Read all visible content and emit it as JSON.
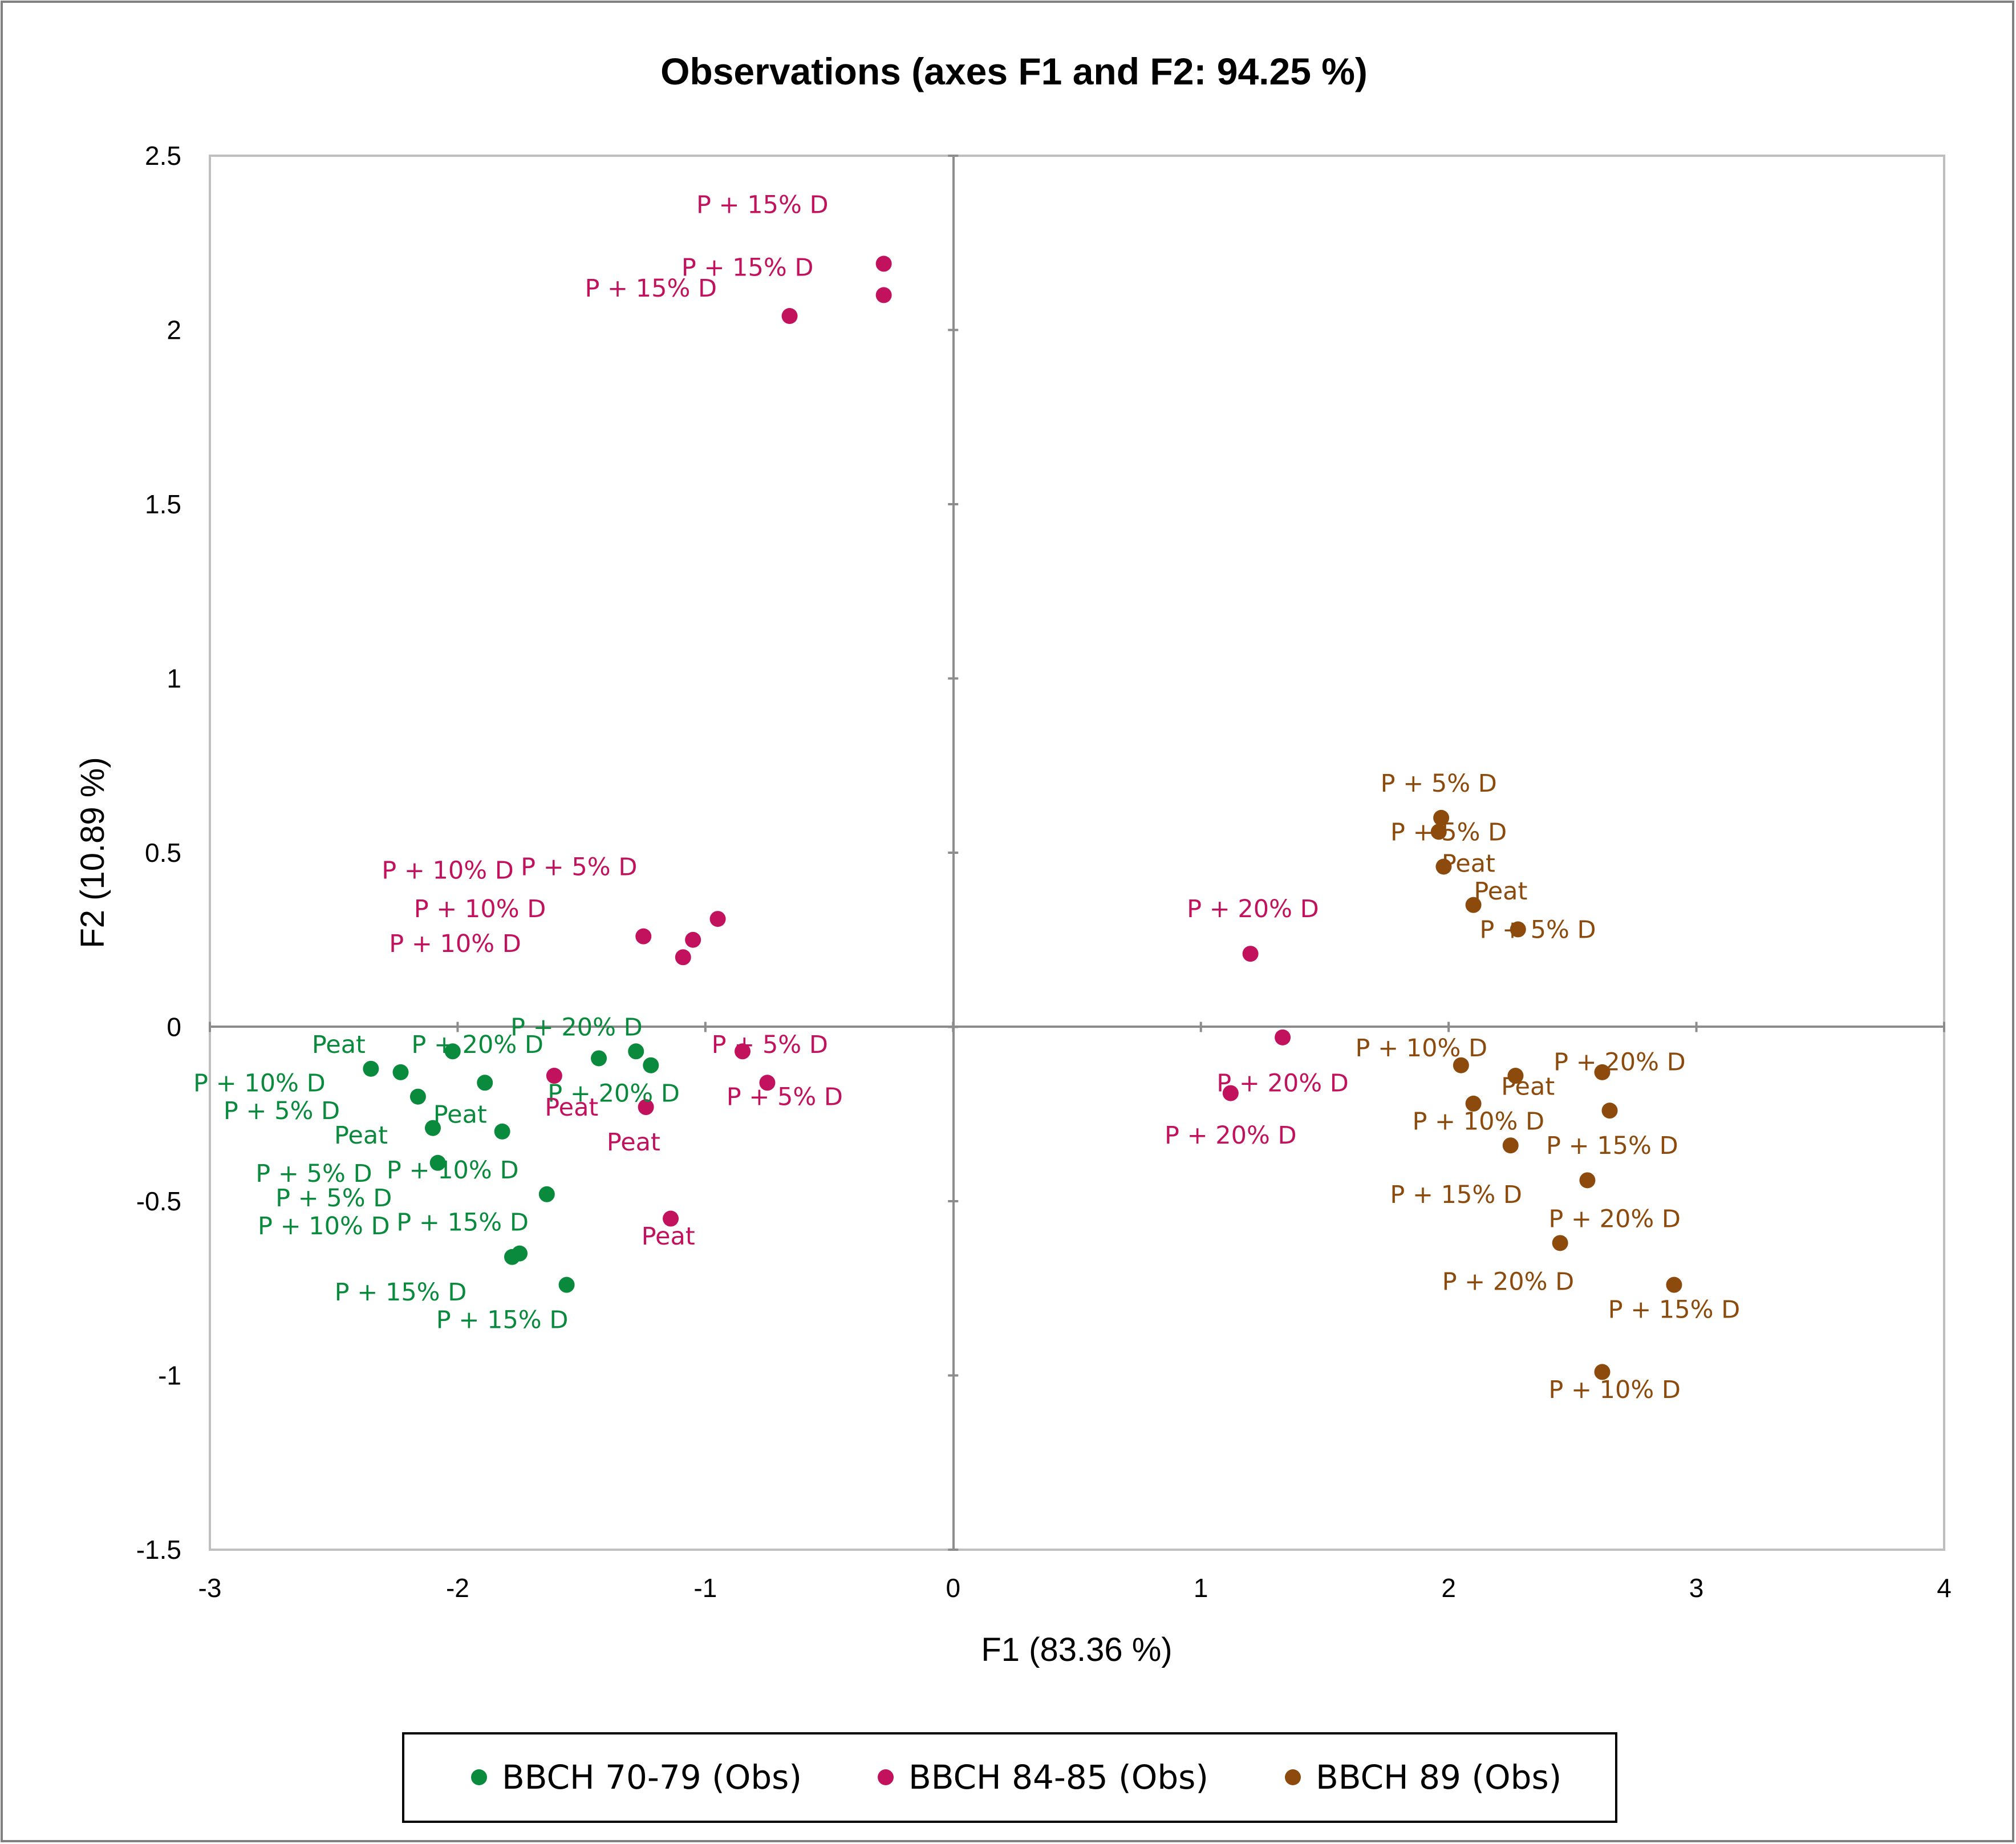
{
  "chart_data": {
    "type": "scatter",
    "title": "Observations (axes F1 and F2: 94.25 %)",
    "xlabel": "F1 (83.36 %)",
    "ylabel": "F2 (10.89 %)",
    "xlim": [
      -3,
      4
    ],
    "ylim": [
      -1.5,
      2.5
    ],
    "xticks": [
      -3,
      -2,
      -1,
      0,
      1,
      2,
      3,
      4
    ],
    "yticks": [
      -1.5,
      -1,
      -0.5,
      0,
      0.5,
      1,
      1.5,
      2,
      2.5
    ],
    "xtick_labels": [
      "-3",
      "-2",
      "-1",
      "0",
      "1",
      "2",
      "3",
      "4"
    ],
    "ytick_labels": [
      "-1.5",
      "-1",
      "-0.5",
      "0",
      "0.5",
      "1",
      "1.5",
      "2",
      "2.5"
    ],
    "grid": false,
    "legend_position": "bottom",
    "series": [
      {
        "name": "BBCH 70-79 (Obs)",
        "color": "#0a8a3c",
        "points": [
          {
            "x": -2.35,
            "y": -0.12
          },
          {
            "x": -2.23,
            "y": -0.13
          },
          {
            "x": -2.16,
            "y": -0.2
          },
          {
            "x": -2.1,
            "y": -0.29
          },
          {
            "x": -2.08,
            "y": -0.39
          },
          {
            "x": -2.02,
            "y": -0.07
          },
          {
            "x": -1.89,
            "y": -0.16
          },
          {
            "x": -1.82,
            "y": -0.3
          },
          {
            "x": -1.64,
            "y": -0.48
          },
          {
            "x": -1.78,
            "y": -0.66
          },
          {
            "x": -1.75,
            "y": -0.65
          },
          {
            "x": -1.56,
            "y": -0.74
          },
          {
            "x": -1.43,
            "y": -0.09
          },
          {
            "x": -1.28,
            "y": -0.07
          },
          {
            "x": -1.22,
            "y": -0.11
          }
        ],
        "labels": [
          {
            "text": "Peat",
            "x": -2.48,
            "y": -0.05
          },
          {
            "text": "P + 10% D",
            "x": -2.8,
            "y": -0.16
          },
          {
            "text": "P + 5% D",
            "x": -2.71,
            "y": -0.24
          },
          {
            "text": "Peat",
            "x": -2.39,
            "y": -0.31
          },
          {
            "text": "Peat",
            "x": -1.99,
            "y": -0.25
          },
          {
            "text": "P + 5% D",
            "x": -2.58,
            "y": -0.42
          },
          {
            "text": "P + 10% D",
            "x": -2.02,
            "y": -0.41
          },
          {
            "text": "P + 5% D",
            "x": -2.5,
            "y": -0.49
          },
          {
            "text": "P + 10% D",
            "x": -2.54,
            "y": -0.57
          },
          {
            "text": "P + 15% D",
            "x": -1.98,
            "y": -0.56
          },
          {
            "text": "P + 15% D",
            "x": -2.23,
            "y": -0.76
          },
          {
            "text": "P + 15% D",
            "x": -1.82,
            "y": -0.84
          },
          {
            "text": "P + 20% D",
            "x": -1.92,
            "y": -0.05
          },
          {
            "text": "P + 20% D",
            "x": -1.52,
            "y": 0.0
          },
          {
            "text": "P + 20% D",
            "x": -1.37,
            "y": -0.19
          }
        ]
      },
      {
        "name": "BBCH 84-85 (Obs)",
        "color": "#c2125e",
        "points": [
          {
            "x": -0.28,
            "y": 2.19
          },
          {
            "x": -0.28,
            "y": 2.1
          },
          {
            "x": -0.66,
            "y": 2.04
          },
          {
            "x": -1.25,
            "y": 0.26
          },
          {
            "x": -1.05,
            "y": 0.25
          },
          {
            "x": -1.09,
            "y": 0.2
          },
          {
            "x": -0.95,
            "y": 0.31
          },
          {
            "x": -1.61,
            "y": -0.14
          },
          {
            "x": -1.24,
            "y": -0.23
          },
          {
            "x": -0.85,
            "y": -0.07
          },
          {
            "x": -0.75,
            "y": -0.16
          },
          {
            "x": -1.14,
            "y": -0.55
          },
          {
            "x": 1.2,
            "y": 0.21
          },
          {
            "x": 1.33,
            "y": -0.03
          },
          {
            "x": 1.12,
            "y": -0.19
          }
        ],
        "labels": [
          {
            "text": "P + 15% D",
            "x": -0.77,
            "y": 2.36
          },
          {
            "text": "P + 15% D",
            "x": -0.83,
            "y": 2.18
          },
          {
            "text": "P + 15% D",
            "x": -1.22,
            "y": 2.12
          },
          {
            "text": "P + 10% D",
            "x": -2.04,
            "y": 0.45
          },
          {
            "text": "P + 5% D",
            "x": -1.51,
            "y": 0.46
          },
          {
            "text": "P + 10% D",
            "x": -1.91,
            "y": 0.34
          },
          {
            "text": "P + 10% D",
            "x": -2.01,
            "y": 0.24
          },
          {
            "text": "P + 5% D",
            "x": -0.74,
            "y": -0.05
          },
          {
            "text": "Peat",
            "x": -1.54,
            "y": -0.23
          },
          {
            "text": "P + 5% D",
            "x": -0.68,
            "y": -0.2
          },
          {
            "text": "Peat",
            "x": -1.29,
            "y": -0.33
          },
          {
            "text": "Peat",
            "x": -1.15,
            "y": -0.6
          },
          {
            "text": "P + 20% D",
            "x": 1.21,
            "y": 0.34
          },
          {
            "text": "P + 20% D",
            "x": 1.33,
            "y": -0.16
          },
          {
            "text": "P + 20% D",
            "x": 1.12,
            "y": -0.31
          }
        ]
      },
      {
        "name": "BBCH 89 (Obs)",
        "color": "#8c4a0c",
        "points": [
          {
            "x": 1.97,
            "y": 0.6
          },
          {
            "x": 1.96,
            "y": 0.56
          },
          {
            "x": 1.98,
            "y": 0.46
          },
          {
            "x": 2.1,
            "y": 0.35
          },
          {
            "x": 2.28,
            "y": 0.28
          },
          {
            "x": 2.05,
            "y": -0.11
          },
          {
            "x": 2.27,
            "y": -0.14
          },
          {
            "x": 2.1,
            "y": -0.22
          },
          {
            "x": 2.62,
            "y": -0.13
          },
          {
            "x": 2.65,
            "y": -0.24
          },
          {
            "x": 2.25,
            "y": -0.34
          },
          {
            "x": 2.56,
            "y": -0.44
          },
          {
            "x": 2.45,
            "y": -0.62
          },
          {
            "x": 2.91,
            "y": -0.74
          },
          {
            "x": 2.62,
            "y": -0.99
          }
        ],
        "labels": [
          {
            "text": "P + 5% D",
            "x": 1.96,
            "y": 0.7
          },
          {
            "text": "P + 5% D",
            "x": 2.0,
            "y": 0.56
          },
          {
            "text": "Peat",
            "x": 2.08,
            "y": 0.47
          },
          {
            "text": "Peat",
            "x": 2.21,
            "y": 0.39
          },
          {
            "text": "P + 5% D",
            "x": 2.36,
            "y": 0.28
          },
          {
            "text": "P + 10% D",
            "x": 1.89,
            "y": -0.06
          },
          {
            "text": "Peat",
            "x": 2.32,
            "y": -0.17
          },
          {
            "text": "P + 20% D",
            "x": 2.69,
            "y": -0.1
          },
          {
            "text": "P + 10% D",
            "x": 2.12,
            "y": -0.27
          },
          {
            "text": "P + 15% D",
            "x": 2.66,
            "y": -0.34
          },
          {
            "text": "P + 15% D",
            "x": 2.03,
            "y": -0.48
          },
          {
            "text": "P + 20% D",
            "x": 2.67,
            "y": -0.55
          },
          {
            "text": "P + 20% D",
            "x": 2.24,
            "y": -0.73
          },
          {
            "text": "P + 15% D",
            "x": 2.91,
            "y": -0.81
          },
          {
            "text": "P + 10% D",
            "x": 2.67,
            "y": -1.04
          }
        ]
      }
    ]
  }
}
